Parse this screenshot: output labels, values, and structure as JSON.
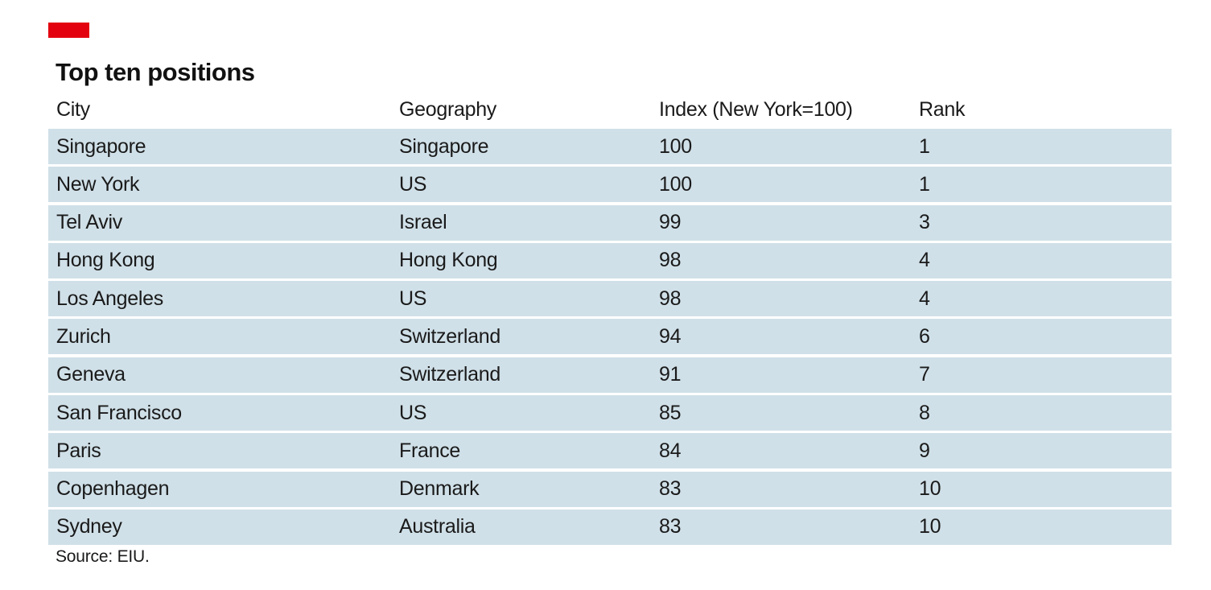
{
  "colors": {
    "accent": "#e3000f",
    "row_background": "#d0e0e8"
  },
  "chart_data": {
    "type": "table",
    "title": "Top ten positions",
    "columns": [
      "City",
      "Geography",
      "Index (New York=100)",
      "Rank"
    ],
    "rows": [
      [
        "Singapore",
        "Singapore",
        "100",
        "1"
      ],
      [
        "New York",
        "US",
        "100",
        "1"
      ],
      [
        "Tel Aviv",
        "Israel",
        "99",
        "3"
      ],
      [
        "Hong Kong",
        "Hong Kong",
        "98",
        "4"
      ],
      [
        "Los Angeles",
        "US",
        "98",
        "4"
      ],
      [
        "Zurich",
        "Switzerland",
        "94",
        "6"
      ],
      [
        "Geneva",
        "Switzerland",
        "91",
        "7"
      ],
      [
        "San Francisco",
        "US",
        "85",
        "8"
      ],
      [
        "Paris",
        "France",
        "84",
        "9"
      ],
      [
        "Copenhagen",
        "Denmark",
        "83",
        "10"
      ],
      [
        "Sydney",
        "Australia",
        "83",
        "10"
      ]
    ],
    "source": "Source: EIU."
  }
}
